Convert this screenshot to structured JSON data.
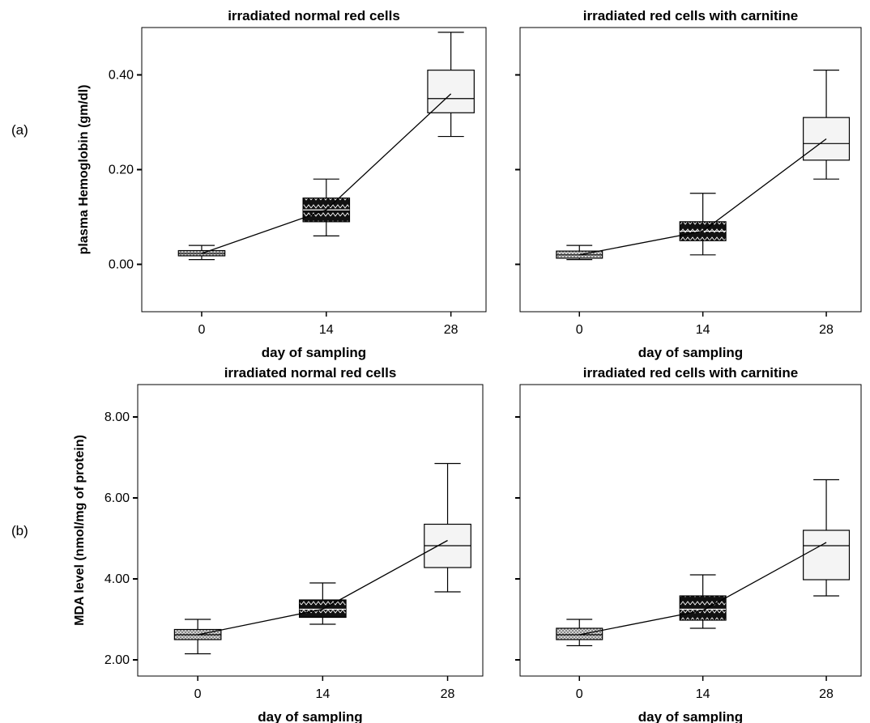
{
  "panel_labels": [
    "(a)",
    "(b)"
  ],
  "colors": {
    "day0_fill": "#cfcfcf",
    "day14_fill": "#111111",
    "day28_fill": "#f4f4f4",
    "stroke": "#000000"
  },
  "chart_data": [
    {
      "type": "box",
      "panel": "(a)",
      "title": "irradiated normal red cells",
      "xlabel": "day of sampling",
      "ylabel": "plasma Hemoglobin (gm/dl)",
      "categories": [
        "0",
        "14",
        "28"
      ],
      "ylim": [
        -0.1,
        0.5
      ],
      "yticks": [
        0.0,
        0.2,
        0.4
      ],
      "ytick_labels": [
        "0.00",
        "0.20",
        "0.40"
      ],
      "boxes": [
        {
          "min": 0.01,
          "q1": 0.018,
          "median": 0.023,
          "q3": 0.029,
          "max": 0.04
        },
        {
          "min": 0.06,
          "q1": 0.09,
          "median": 0.115,
          "q3": 0.14,
          "max": 0.18
        },
        {
          "min": 0.27,
          "q1": 0.32,
          "median": 0.35,
          "q3": 0.41,
          "max": 0.49
        }
      ],
      "mean_line": [
        0.023,
        0.115,
        0.36
      ]
    },
    {
      "type": "box",
      "panel": "(a)",
      "title": "irradiated red cells with carnitine",
      "xlabel": "day of sampling",
      "ylabel": "",
      "categories": [
        "0",
        "14",
        "28"
      ],
      "ylim": [
        -0.1,
        0.5
      ],
      "yticks": [
        0.0,
        0.2,
        0.4
      ],
      "ytick_labels": [
        "",
        "",
        ""
      ],
      "boxes": [
        {
          "min": 0.01,
          "q1": 0.013,
          "median": 0.02,
          "q3": 0.028,
          "max": 0.04
        },
        {
          "min": 0.02,
          "q1": 0.05,
          "median": 0.07,
          "q3": 0.09,
          "max": 0.15
        },
        {
          "min": 0.18,
          "q1": 0.22,
          "median": 0.255,
          "q3": 0.31,
          "max": 0.41
        }
      ],
      "mean_line": [
        0.02,
        0.07,
        0.265
      ]
    },
    {
      "type": "box",
      "panel": "(b)",
      "title": "irradiated normal red cells",
      "xlabel": "day of sampling",
      "ylabel": "MDA level (nmol/mg of protein)",
      "categories": [
        "0",
        "14",
        "28"
      ],
      "ylim": [
        1.6,
        8.8
      ],
      "yticks": [
        2.0,
        4.0,
        6.0,
        8.0
      ],
      "ytick_labels": [
        "2.00",
        "4.00",
        "6.00",
        "8.00"
      ],
      "boxes": [
        {
          "min": 2.15,
          "q1": 2.5,
          "median": 2.62,
          "q3": 2.75,
          "max": 3.0
        },
        {
          "min": 2.88,
          "q1": 3.05,
          "median": 3.25,
          "q3": 3.48,
          "max": 3.9
        },
        {
          "min": 3.68,
          "q1": 4.28,
          "median": 4.82,
          "q3": 5.35,
          "max": 6.85
        }
      ],
      "mean_line": [
        2.62,
        3.25,
        4.95
      ]
    },
    {
      "type": "box",
      "panel": "(b)",
      "title": "irradiated red cells with carnitine",
      "xlabel": "day of sampling",
      "ylabel": "",
      "categories": [
        "0",
        "14",
        "28"
      ],
      "ylim": [
        1.6,
        8.8
      ],
      "yticks": [
        2.0,
        4.0,
        6.0,
        8.0
      ],
      "ytick_labels": [
        "",
        "",
        "",
        ""
      ],
      "boxes": [
        {
          "min": 2.35,
          "q1": 2.5,
          "median": 2.62,
          "q3": 2.78,
          "max": 3.0
        },
        {
          "min": 2.78,
          "q1": 2.98,
          "median": 3.25,
          "q3": 3.58,
          "max": 4.1
        },
        {
          "min": 3.58,
          "q1": 3.98,
          "median": 4.82,
          "q3": 5.2,
          "max": 6.45
        }
      ],
      "mean_line": [
        2.62,
        3.22,
        4.9
      ]
    }
  ]
}
